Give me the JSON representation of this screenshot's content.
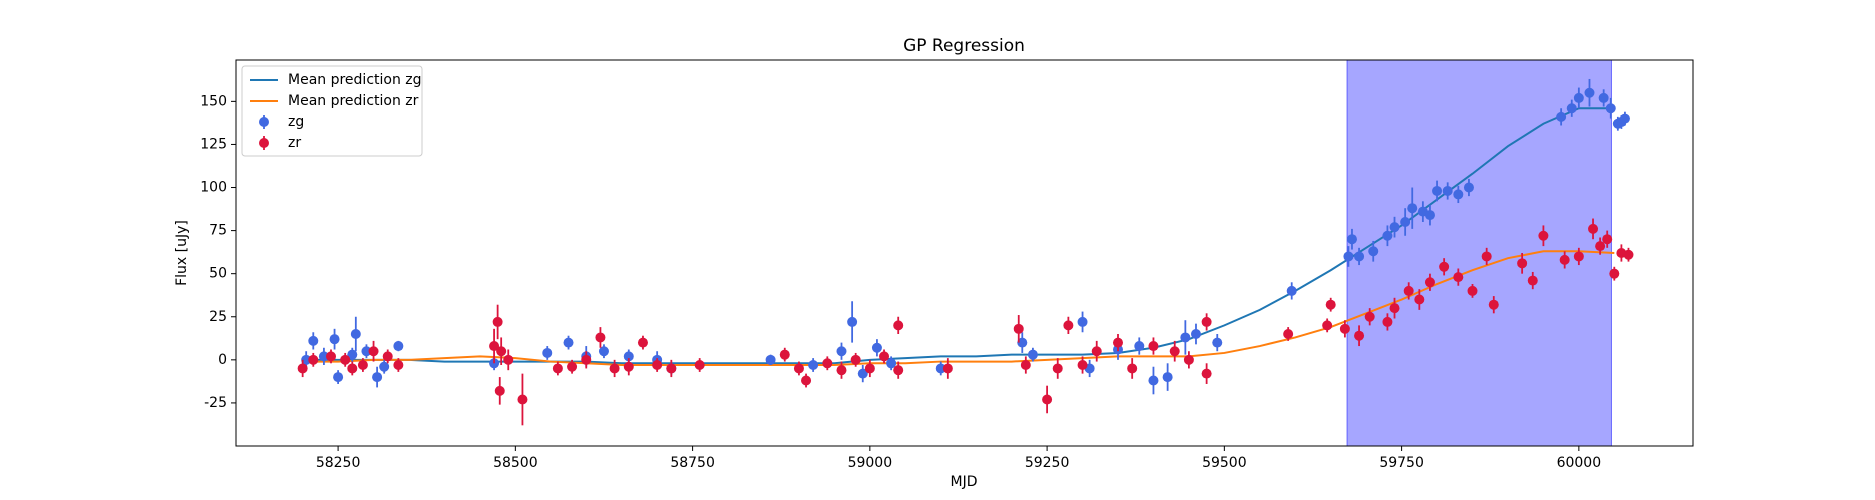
{
  "chart_data": {
    "type": "errorbar",
    "title": "GP Regression",
    "x_label": "MJD",
    "y_label": "Flux [uJy]",
    "xlim": [
      58106,
      60161
    ],
    "ylim": [
      -50,
      174
    ],
    "xticks": [
      58250,
      58500,
      58750,
      59000,
      59250,
      59500,
      59750,
      60000
    ],
    "yticks": [
      -25,
      0,
      25,
      50,
      75,
      100,
      125,
      150
    ],
    "legend": "upper left",
    "span": {
      "xlim": [
        59673,
        60046
      ],
      "color": "#0000ff",
      "alpha": 0.35
    },
    "series": [
      {
        "name": "Mean prediction zg",
        "kind": "line",
        "color": "#1f77b4",
        "x": [
          58200,
          58250,
          58300,
          58350,
          58400,
          58450,
          58500,
          58550,
          58600,
          58650,
          58700,
          58750,
          58800,
          58850,
          58900,
          58950,
          59000,
          59050,
          59100,
          59150,
          59200,
          59250,
          59300,
          59350,
          59400,
          59450,
          59500,
          59550,
          59600,
          59650,
          59700,
          59750,
          59800,
          59850,
          59900,
          59950,
          60000,
          60050
        ],
        "values": [
          0,
          0,
          0,
          0,
          -1,
          -1,
          -1,
          -1,
          -1,
          -2,
          -2,
          -2,
          -2,
          -2,
          -2,
          -2,
          0,
          1,
          2,
          2,
          3,
          3,
          3,
          4,
          7,
          12,
          20,
          29,
          40,
          52,
          65,
          78,
          93,
          108,
          124,
          137,
          146,
          146
        ]
      },
      {
        "name": "Mean prediction zr",
        "kind": "line",
        "color": "#ff7f0e",
        "x": [
          58200,
          58250,
          58300,
          58350,
          58400,
          58450,
          58500,
          58550,
          58600,
          58650,
          58700,
          58750,
          58800,
          58850,
          58900,
          58950,
          59000,
          59050,
          59100,
          59150,
          59200,
          59250,
          59300,
          59350,
          59400,
          59450,
          59500,
          59550,
          59600,
          59650,
          59700,
          59750,
          59800,
          59850,
          59900,
          59950,
          60000,
          60050
        ],
        "values": [
          -1,
          -1,
          0,
          0,
          1,
          2,
          1,
          -1,
          -2,
          -3,
          -3,
          -3,
          -3,
          -3,
          -3,
          -3,
          -2,
          -2,
          -1,
          -1,
          -1,
          0,
          1,
          2,
          2,
          2,
          4,
          8,
          13,
          19,
          27,
          35,
          44,
          52,
          59,
          63,
          63,
          62
        ]
      },
      {
        "name": "zg",
        "kind": "points",
        "color": "#4169e1",
        "x": [
          58205,
          58215,
          58230,
          58245,
          58250,
          58270,
          58275,
          58290,
          58305,
          58315,
          58335,
          58470,
          58545,
          58575,
          58600,
          58625,
          58660,
          58700,
          58720,
          58860,
          58920,
          58960,
          58975,
          58990,
          59010,
          59030,
          59100,
          59215,
          59230,
          59300,
          59310,
          59350,
          59380,
          59400,
          59420,
          59445,
          59460,
          59490,
          59595,
          59675,
          59680,
          59690,
          59710,
          59730,
          59740,
          59755,
          59765,
          59780,
          59790,
          59800,
          59815,
          59830,
          59845,
          59975,
          59990,
          60000,
          60015,
          60035,
          60045,
          60055,
          60060,
          60065
        ],
        "values": [
          0,
          11,
          2,
          12,
          -10,
          3,
          15,
          5,
          -10,
          -4,
          8,
          -2,
          4,
          10,
          2,
          5,
          2,
          0,
          -5,
          0,
          -3,
          5,
          22,
          -8,
          7,
          -2,
          -5,
          10,
          3,
          22,
          -5,
          6,
          8,
          -12,
          -10,
          13,
          15,
          10,
          40,
          60,
          70,
          60,
          63,
          72,
          77,
          80,
          88,
          86,
          84,
          98,
          98,
          96,
          100,
          141,
          146,
          152,
          155,
          152,
          146,
          137,
          138,
          140
        ],
        "errors": [
          5,
          5,
          5,
          6,
          4,
          4,
          10,
          4,
          6,
          4,
          3,
          4,
          4,
          4,
          6,
          4,
          4,
          5,
          4,
          3,
          4,
          5,
          12,
          5,
          5,
          4,
          4,
          6,
          4,
          6,
          5,
          6,
          5,
          8,
          8,
          10,
          6,
          5,
          5,
          6,
          6,
          5,
          6,
          6,
          6,
          8,
          12,
          6,
          6,
          6,
          5,
          5,
          5,
          5,
          5,
          6,
          8,
          5,
          6,
          4,
          4,
          4
        ]
      },
      {
        "name": "zr",
        "kind": "points",
        "color": "#dc143c",
        "x": [
          58200,
          58215,
          58240,
          58260,
          58270,
          58285,
          58300,
          58320,
          58335,
          58470,
          58475,
          58478,
          58480,
          58490,
          58510,
          58560,
          58580,
          58600,
          58620,
          58640,
          58660,
          58680,
          58700,
          58720,
          58760,
          58880,
          58900,
          58910,
          58940,
          58960,
          58980,
          59000,
          59020,
          59040,
          59040,
          59110,
          59210,
          59220,
          59250,
          59265,
          59280,
          59300,
          59320,
          59350,
          59370,
          59400,
          59430,
          59450,
          59475,
          59475,
          59590,
          59645,
          59650,
          59670,
          59690,
          59705,
          59730,
          59740,
          59760,
          59775,
          59790,
          59810,
          59830,
          59850,
          59870,
          59880,
          59920,
          59935,
          59950,
          59980,
          60000,
          60020,
          60030,
          60040,
          60050,
          60060,
          60070
        ],
        "values": [
          -5,
          0,
          2,
          0,
          -5,
          -3,
          5,
          2,
          -3,
          8,
          22,
          -18,
          5,
          0,
          -23,
          -5,
          -4,
          0,
          13,
          -5,
          -4,
          10,
          -3,
          -5,
          -3,
          3,
          -5,
          -12,
          -2,
          -6,
          0,
          -5,
          2,
          20,
          -6,
          -5,
          18,
          -3,
          -23,
          -5,
          20,
          -3,
          5,
          10,
          -5,
          8,
          5,
          0,
          22,
          -8,
          15,
          20,
          32,
          18,
          14,
          25,
          22,
          30,
          40,
          35,
          45,
          54,
          48,
          40,
          60,
          32,
          56,
          46,
          72,
          58,
          60,
          76,
          66,
          70,
          50,
          62,
          61
        ],
        "errors": [
          5,
          4,
          4,
          4,
          4,
          4,
          6,
          4,
          4,
          10,
          10,
          8,
          8,
          6,
          15,
          4,
          4,
          5,
          6,
          5,
          5,
          4,
          4,
          5,
          4,
          4,
          4,
          4,
          4,
          5,
          4,
          5,
          4,
          5,
          5,
          6,
          8,
          5,
          8,
          6,
          5,
          5,
          6,
          5,
          6,
          5,
          6,
          5,
          5,
          6,
          4,
          4,
          4,
          5,
          6,
          5,
          5,
          6,
          5,
          6,
          5,
          5,
          5,
          4,
          5,
          5,
          6,
          5,
          6,
          5,
          5,
          6,
          5,
          5,
          4,
          5,
          4
        ]
      }
    ]
  }
}
